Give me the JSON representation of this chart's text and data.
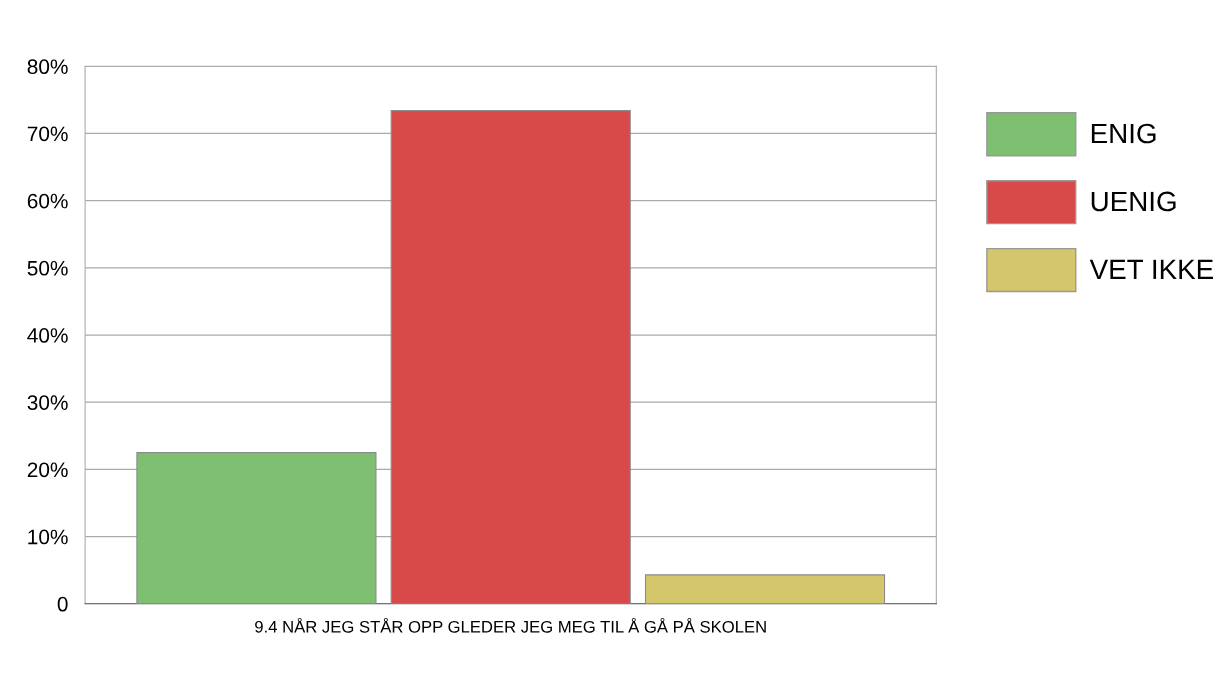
{
  "chart_data": {
    "type": "bar",
    "categories": [
      "9.4 NÅR JEG STÅR OPP GLEDER JEG MEG TIL Å GÅ PÅ SKOLEN"
    ],
    "series": [
      {
        "name": "ENIG",
        "color": "#7fbf72",
        "values": [
          22.5
        ]
      },
      {
        "name": "UENIG",
        "color": "#d84a4a",
        "values": [
          73.4
        ]
      },
      {
        "name": "VET IKKE",
        "color": "#d4c66a",
        "values": [
          4.3
        ]
      }
    ],
    "ylim": [
      0,
      80
    ],
    "yticks": [
      0,
      {
        "value": 10,
        "label": "10%"
      },
      {
        "value": 20,
        "label": "20%"
      },
      {
        "value": 30,
        "label": "30%"
      },
      {
        "value": 40,
        "label": "40%"
      },
      {
        "value": 50,
        "label": "50%"
      },
      {
        "value": 60,
        "label": "60%"
      },
      {
        "value": 70,
        "label": "70%"
      },
      {
        "value": 80,
        "label": "80%"
      }
    ],
    "grid": "y",
    "legend": "right"
  }
}
